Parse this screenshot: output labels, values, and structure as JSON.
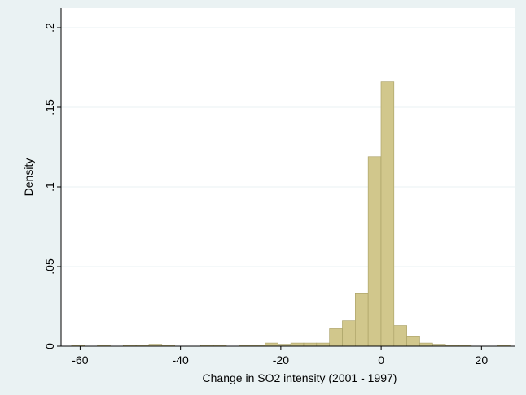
{
  "chart_data": {
    "type": "histogram",
    "xlabel": "Change in SO2 intensity (2001 - 1997)",
    "ylabel": "Density",
    "bins": [
      -61.7,
      -59.13,
      -56.56,
      -53.99,
      -51.42,
      -48.85,
      -46.28,
      -43.71,
      -41.14,
      -38.57,
      -36,
      -33.43,
      -30.86,
      -28.29,
      -25.72,
      -23.15,
      -20.58,
      -18.01,
      -15.44,
      -12.87,
      -10.3,
      -7.73,
      -5.16,
      -2.59,
      -0.02,
      2.55,
      5.12,
      7.69,
      10.26,
      12.83,
      15.4,
      17.97,
      20.54,
      23.11,
      25.68
    ],
    "counts": [
      0.0006,
      0,
      0.0006,
      0,
      0.0006,
      0.0006,
      0.0012,
      0.0006,
      0,
      0,
      0.0006,
      0.0006,
      0,
      0.0006,
      0.0006,
      0.002,
      0.0012,
      0.002,
      0.002,
      0.002,
      0.011,
      0.016,
      0.033,
      0.119,
      0.166,
      0.013,
      0.006,
      0.002,
      0.0012,
      0.0006,
      0.0006,
      0,
      0,
      0.0006
    ],
    "color": "#d1c78c",
    "xlim": [
      -63.8,
      26.6
    ],
    "ylim": [
      0,
      0.2
    ],
    "xticks": [
      -60,
      -40,
      -20,
      0,
      20
    ],
    "yticks": [
      0,
      {
        "value": 0.05,
        "label": ".05"
      },
      {
        "value": 0.1,
        "label": ".1"
      },
      {
        "value": 0.15,
        "label": ".15"
      },
      {
        "value": 0.2,
        "label": ".2"
      }
    ],
    "grid": true
  }
}
